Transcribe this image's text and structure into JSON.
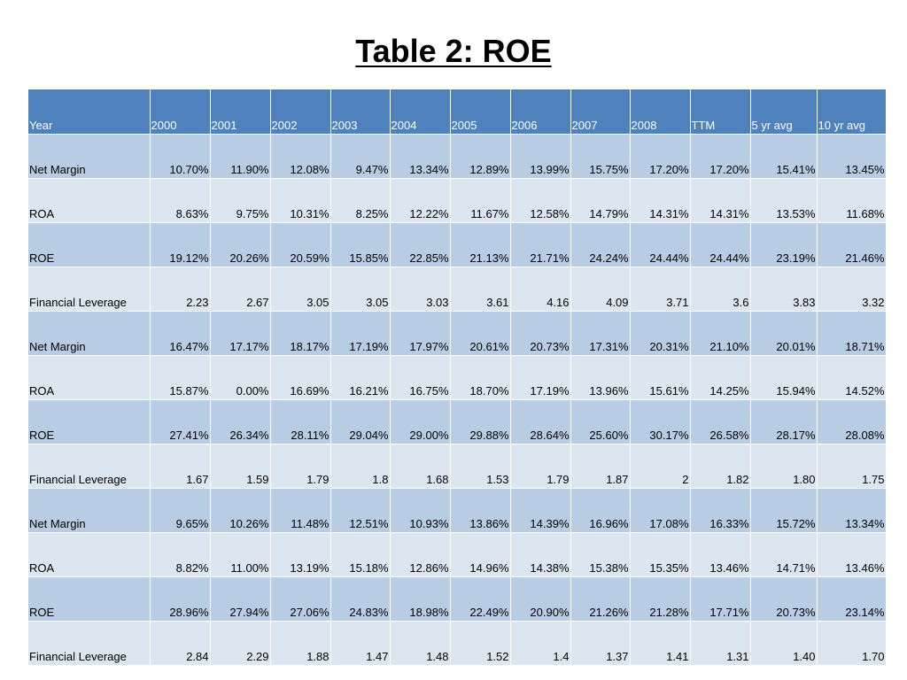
{
  "title": "Table 2: ROE",
  "table": {
    "headers": [
      "Year",
      "2000",
      "2001",
      "2002",
      "2003",
      "2004",
      "2005",
      "2006",
      "2007",
      "2008",
      "TTM",
      "5 yr avg",
      "10 yr avg"
    ],
    "rows": [
      [
        "Net Margin",
        "10.70%",
        "11.90%",
        "12.08%",
        "9.47%",
        "13.34%",
        "12.89%",
        "13.99%",
        "15.75%",
        "17.20%",
        "17.20%",
        "15.41%",
        "13.45%"
      ],
      [
        "ROA",
        "8.63%",
        "9.75%",
        "10.31%",
        "8.25%",
        "12.22%",
        "11.67%",
        "12.58%",
        "14.79%",
        "14.31%",
        "14.31%",
        "13.53%",
        "11.68%"
      ],
      [
        "ROE",
        "19.12%",
        "20.26%",
        "20.59%",
        "15.85%",
        "22.85%",
        "21.13%",
        "21.71%",
        "24.24%",
        "24.44%",
        "24.44%",
        "23.19%",
        "21.46%"
      ],
      [
        "Financial Leverage",
        "2.23",
        "2.67",
        "3.05",
        "3.05",
        "3.03",
        "3.61",
        "4.16",
        "4.09",
        "3.71",
        "3.6",
        "3.83",
        "3.32"
      ],
      [
        "Net Margin",
        "16.47%",
        "17.17%",
        "18.17%",
        "17.19%",
        "17.97%",
        "20.61%",
        "20.73%",
        "17.31%",
        "20.31%",
        "21.10%",
        "20.01%",
        "18.71%"
      ],
      [
        "ROA",
        "15.87%",
        "0.00%",
        "16.69%",
        "16.21%",
        "16.75%",
        "18.70%",
        "17.19%",
        "13.96%",
        "15.61%",
        "14.25%",
        "15.94%",
        "14.52%"
      ],
      [
        "ROE",
        "27.41%",
        "26.34%",
        "28.11%",
        "29.04%",
        "29.00%",
        "29.88%",
        "28.64%",
        "25.60%",
        "30.17%",
        "26.58%",
        "28.17%",
        "28.08%"
      ],
      [
        "Financial Leverage",
        "1.67",
        "1.59",
        "1.79",
        "1.8",
        "1.68",
        "1.53",
        "1.79",
        "1.87",
        "2",
        "1.82",
        "1.80",
        "1.75"
      ],
      [
        "Net Margin",
        "9.65%",
        "10.26%",
        "11.48%",
        "12.51%",
        "10.93%",
        "13.86%",
        "14.39%",
        "16.96%",
        "17.08%",
        "16.33%",
        "15.72%",
        "13.34%"
      ],
      [
        "ROA",
        "8.82%",
        "11.00%",
        "13.19%",
        "15.18%",
        "12.86%",
        "14.96%",
        "14.38%",
        "15.38%",
        "15.35%",
        "13.46%",
        "14.71%",
        "13.46%"
      ],
      [
        "ROE",
        "28.96%",
        "27.94%",
        "27.06%",
        "24.83%",
        "18.98%",
        "22.49%",
        "20.90%",
        "21.26%",
        "21.28%",
        "17.71%",
        "20.73%",
        "23.14%"
      ],
      [
        "Financial Leverage",
        "2.84",
        "2.29",
        "1.88",
        "1.47",
        "1.48",
        "1.52",
        "1.4",
        "1.37",
        "1.41",
        "1.31",
        "1.40",
        "1.70"
      ]
    ]
  },
  "colors": {
    "header_bg": "#4f81bd",
    "row_dark": "#b8cce4",
    "row_light": "#dce6f1"
  }
}
